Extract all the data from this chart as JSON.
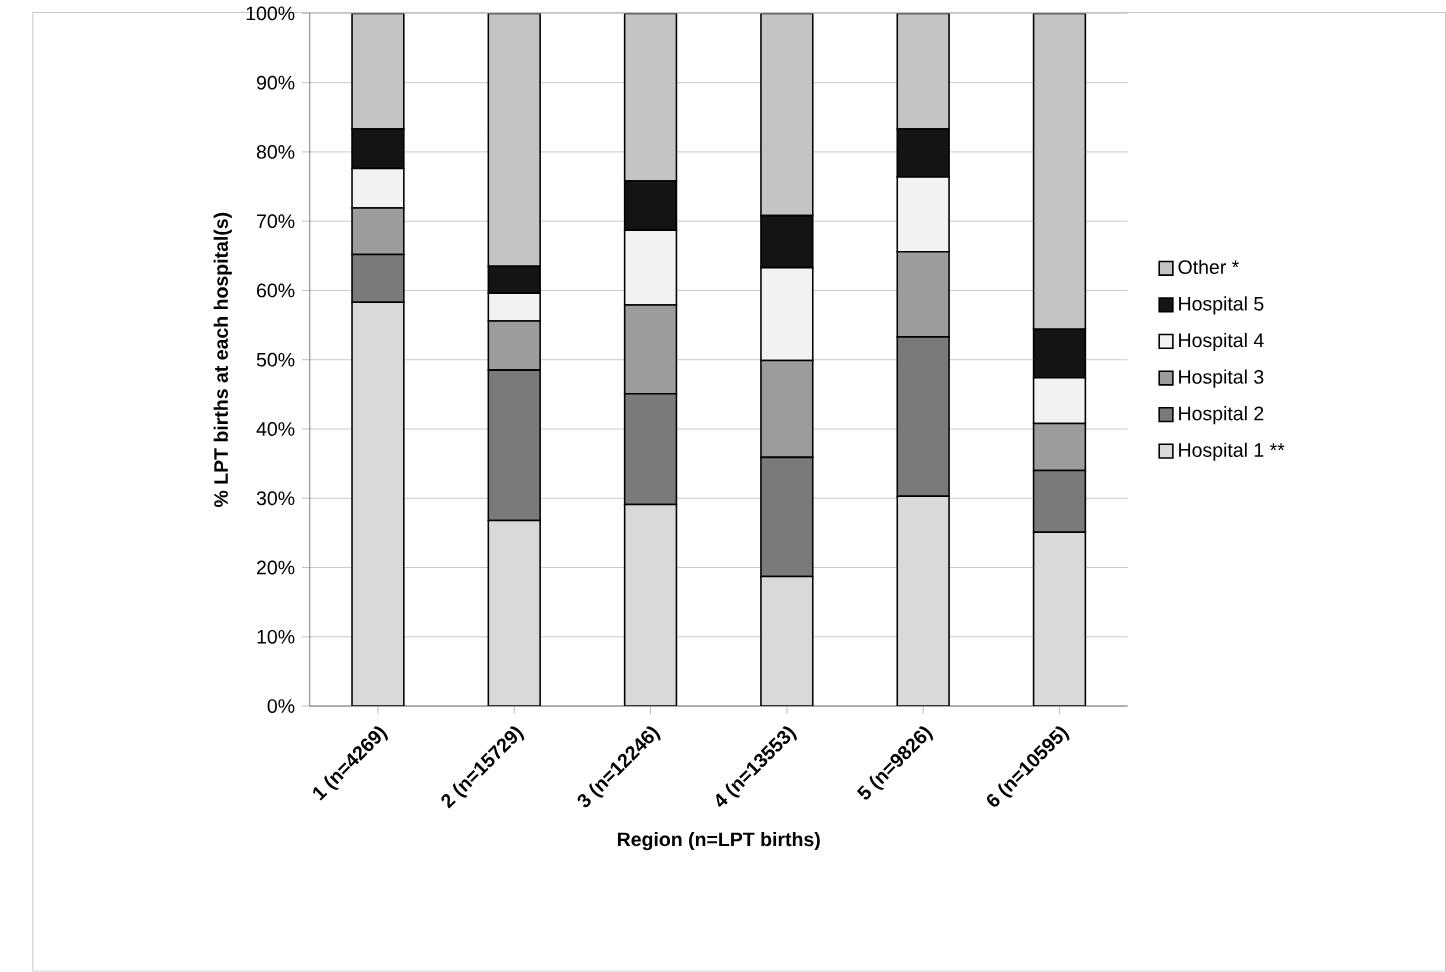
{
  "chart_data": {
    "type": "bar",
    "stacked": true,
    "xlabel": "Region (n=LPT births)",
    "ylabel": "% LPT births at each hospital(s)",
    "categories": [
      "1 (n=4269)",
      "2 (n=15729)",
      "3 (n=12246)",
      "4 (n=13553)",
      "5 (n=9826)",
      "6 (n=10595)"
    ],
    "series": [
      {
        "name": "Hospital 1 **",
        "color": "#d9d9d9",
        "values": [
          58.3,
          26.8,
          29.1,
          18.7,
          30.3,
          25.1
        ]
      },
      {
        "name": "Hospital 2",
        "color": "#7a7a7a",
        "values": [
          6.9,
          21.7,
          16.0,
          17.2,
          23.0,
          8.9
        ]
      },
      {
        "name": "Hospital 3",
        "color": "#9c9c9c",
        "values": [
          6.7,
          7.1,
          12.8,
          14.0,
          12.3,
          6.8
        ]
      },
      {
        "name": "Hospital 4",
        "color": "#f2f2f2",
        "values": [
          5.7,
          4.0,
          10.8,
          13.4,
          10.8,
          6.6
        ]
      },
      {
        "name": "Hospital 5",
        "color": "#141414",
        "values": [
          5.7,
          3.9,
          7.1,
          7.5,
          6.9,
          7.0
        ]
      },
      {
        "name": "Other *",
        "color": "#c4c4c4",
        "values": [
          16.7,
          36.5,
          24.2,
          29.2,
          16.7,
          45.6
        ]
      }
    ],
    "ylim": [
      0,
      100
    ],
    "yticks": [
      {
        "value": 0,
        "label": "0%"
      },
      {
        "value": 10,
        "label": "10%"
      },
      {
        "value": 20,
        "label": "20%"
      },
      {
        "value": 30,
        "label": "30%"
      },
      {
        "value": 40,
        "label": "40%"
      },
      {
        "value": 50,
        "label": "50%"
      },
      {
        "value": 60,
        "label": "60%"
      },
      {
        "value": 70,
        "label": "70%"
      },
      {
        "value": 80,
        "label": "80%"
      },
      {
        "value": 90,
        "label": "90%"
      },
      {
        "value": 100,
        "label": "100%"
      }
    ],
    "grid": "y",
    "legend": "right"
  }
}
